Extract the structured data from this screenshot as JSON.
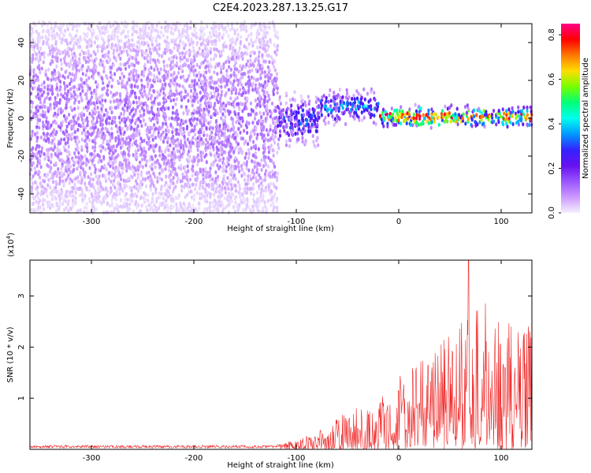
{
  "title": "C2E4.2023.287.13.25.G17",
  "colors": {
    "signal": "#ee2222",
    "spectrogram_background": "#ffffff",
    "colormap": [
      "#f4f0ff",
      "#cc99ff",
      "#9955ff",
      "#6611ee",
      "#3322ff",
      "#0099ff",
      "#00ffee",
      "#00ff77",
      "#77ff00",
      "#ffdd00",
      "#ff7700",
      "#ff0000",
      "#ff0088"
    ]
  },
  "chart_data": [
    {
      "type": "heatmap",
      "xlabel": "Height of straight line (km)",
      "ylabel": "Frequency (Hz)",
      "xlim": [
        -360,
        130
      ],
      "ylim": [
        -50,
        50
      ],
      "xticks": [
        -300,
        -200,
        -100,
        0,
        100
      ],
      "xtick_labels": [
        "-300",
        "-200",
        "-100",
        "0",
        "100"
      ],
      "yticks": [
        -40,
        -20,
        0,
        20,
        40
      ],
      "ytick_labels": [
        "-40",
        "-20",
        "0",
        "20",
        "40"
      ],
      "colorbar": {
        "label": "Normalized spectral amplitude",
        "range": [
          0,
          0.85
        ],
        "ticks": [
          0.0,
          0.2,
          0.4,
          0.6,
          0.8
        ],
        "tick_labels": [
          "0.0",
          "0.2",
          "0.4",
          "0.6",
          "0.8"
        ]
      },
      "regions": [
        {
          "x": [
            -360,
            -120
          ],
          "freq_center": 0,
          "freq_halfwidth": 50,
          "amplitude": 0.1
        },
        {
          "x": [
            -120,
            -80
          ],
          "freq_center": -2,
          "freq_halfwidth": 12,
          "amplitude": 0.25
        },
        {
          "x": [
            -80,
            -20
          ],
          "freq_center": 5,
          "freq_halfwidth": 8,
          "amplitude": 0.3
        },
        {
          "x": [
            -20,
            130
          ],
          "freq_center": 0,
          "freq_halfwidth": 5,
          "amplitude": 0.6
        }
      ],
      "peak": {
        "x": 20,
        "freq": 0,
        "amplitude": 0.85
      }
    },
    {
      "type": "line",
      "xlabel": "Height of straight line (km)",
      "ylabel": "SNR (10 * v/v)",
      "scale_label": "(x10^4)",
      "scale_base": "x10",
      "scale_exp": "4",
      "xlim": [
        -360,
        130
      ],
      "ylim": [
        0,
        3.7
      ],
      "xticks": [
        -300,
        -200,
        -100,
        0,
        100
      ],
      "xtick_labels": [
        "-300",
        "-200",
        "-100",
        "0",
        "100"
      ],
      "yticks": [
        1,
        2,
        3
      ],
      "ytick_labels": [
        "1",
        "2",
        "3"
      ],
      "envelope": {
        "x": [
          -360,
          -120,
          -100,
          -80,
          -50,
          -20,
          0,
          20,
          40,
          60,
          80,
          100,
          130
        ],
        "y": [
          0.08,
          0.08,
          0.18,
          0.35,
          0.75,
          0.95,
          1.5,
          1.8,
          2.2,
          2.5,
          2.9,
          2.7,
          2.5
        ]
      },
      "peak": {
        "x": 68,
        "y": 3.7
      }
    }
  ]
}
